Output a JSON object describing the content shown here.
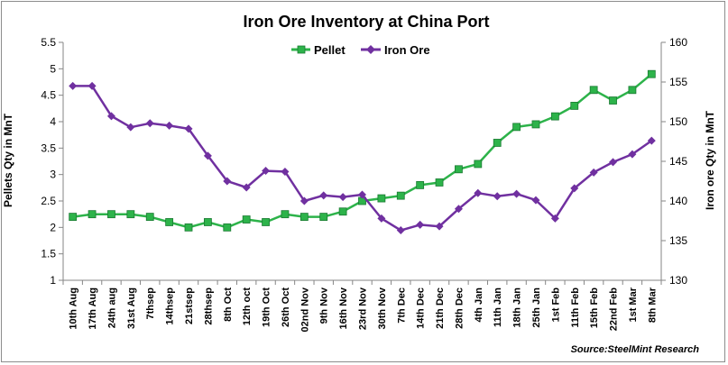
{
  "chart_data": {
    "type": "line",
    "title": "Iron Ore Inventory at China Port",
    "ylabel_left": "Pellets Qty in MnT",
    "ylabel_right": "Iron ore Qty in MnT",
    "y_left_lim": [
      1,
      5.5
    ],
    "y_left_ticks": [
      "1",
      "1.5",
      "2",
      "2.5",
      "3",
      "3.5",
      "4",
      "4.5",
      "5",
      "5.5"
    ],
    "y_right_lim": [
      130,
      160
    ],
    "y_right_ticks": [
      "130",
      "135",
      "140",
      "145",
      "150",
      "155",
      "160"
    ],
    "legend_position": "top-center",
    "grid": false,
    "source": "Source:SteelMint Research",
    "categories": [
      "10th Aug",
      "17th Aug",
      "24th aug",
      "31st Aug",
      "7thsep",
      "14thsep",
      "21stsep",
      "28thsep",
      "8th Oct",
      "12th oct",
      "19th Oct",
      "26th Oct",
      "02nd Nov",
      "9th Nov",
      "16th Nov",
      "23rd Nov",
      "30th Nov",
      "7th Dec",
      "14th Dec",
      "21th Dec",
      "28th Dec",
      "4th Jan",
      "11th Jan",
      "18th Jan",
      "25th Jan",
      "1st Feb",
      "11th Feb",
      "15th Feb",
      "22nd Feb",
      "1st Mar",
      "8th Mar"
    ],
    "series": [
      {
        "name": "Pellet",
        "axis": "left",
        "color": "#2db34a",
        "values": [
          2.2,
          2.25,
          2.25,
          2.25,
          2.2,
          2.1,
          2.0,
          2.1,
          2.0,
          2.15,
          2.1,
          2.25,
          2.2,
          2.2,
          2.3,
          2.5,
          2.55,
          2.6,
          2.8,
          2.85,
          3.1,
          3.2,
          3.6,
          3.9,
          3.95,
          4.1,
          4.3,
          4.6,
          4.4,
          4.6,
          4.9
        ]
      },
      {
        "name": "Iron Ore",
        "axis": "right",
        "color": "#7030a0",
        "values": [
          154.5,
          154.5,
          150.7,
          149.3,
          149.8,
          149.5,
          149.1,
          145.7,
          142.5,
          141.7,
          143.8,
          143.7,
          140.0,
          140.7,
          140.5,
          140.8,
          137.8,
          136.3,
          137.0,
          136.8,
          139.0,
          141.0,
          140.6,
          140.9,
          140.1,
          137.8,
          141.6,
          143.6,
          144.9,
          145.9,
          147.6
        ]
      }
    ]
  }
}
